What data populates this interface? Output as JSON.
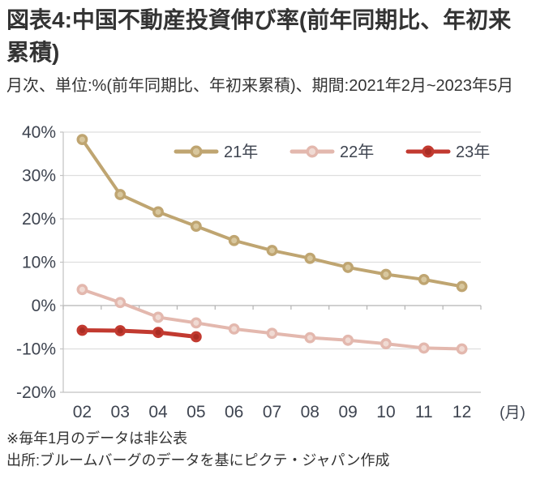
{
  "figure": {
    "title": "図表4:中国不動産投資伸び率(前年同期比、年初来累積)",
    "subtitle": "月次、単位:%(前年同期比、年初来累積)、期間:2021年2月~2023年5月",
    "note": "※毎年1月のデータは非公表",
    "source": "出所:ブルームバーグのデータを基にピクテ・ジャパン作成"
  },
  "colors": {
    "text": "#333333",
    "axis_label": "#3e4450",
    "grid": "#dedede",
    "axis": "#c2c2c2",
    "zero_line": "#b3b3b3",
    "tick": "#b3b3b3"
  },
  "chart_data": {
    "type": "line",
    "categories": [
      "02",
      "03",
      "04",
      "05",
      "06",
      "07",
      "08",
      "09",
      "10",
      "11",
      "12"
    ],
    "x_unit_label": "(月)",
    "ylim": [
      -20,
      40
    ],
    "ytick_step": 10,
    "ytick_labels": [
      "40%",
      "30%",
      "20%",
      "10%",
      "0%",
      "-10%",
      "-20%"
    ],
    "grid": true,
    "legend_position": "top-inside",
    "series": [
      {
        "name": "21年",
        "color": "#bfa571",
        "marker_fill": "#d8c79e",
        "line_width": 4,
        "values": [
          38.3,
          25.6,
          21.6,
          18.3,
          15.0,
          12.7,
          10.9,
          8.8,
          7.2,
          6.0,
          4.4
        ]
      },
      {
        "name": "22年",
        "color": "#e3b8ae",
        "marker_fill": "#f0dad3",
        "line_width": 4,
        "values": [
          3.7,
          0.7,
          -2.7,
          -4.0,
          -5.4,
          -6.4,
          -7.4,
          -8.0,
          -8.8,
          -9.8,
          -10.0
        ]
      },
      {
        "name": "23年",
        "color": "#c23a30",
        "marker_fill": "#aa2d24",
        "line_width": 5,
        "values": [
          -5.7,
          -5.8,
          -6.2,
          -7.2,
          null,
          null,
          null,
          null,
          null,
          null,
          null
        ]
      }
    ]
  }
}
